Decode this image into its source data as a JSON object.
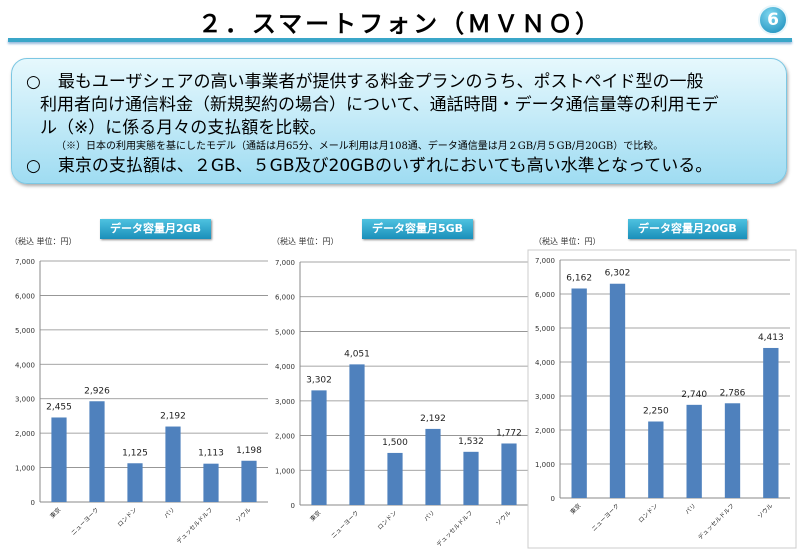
{
  "header": {
    "title": "２．スマートフォン（ＭＶＮＯ）",
    "page_badge": "6"
  },
  "summary": {
    "bullet1_lines": [
      "○　最もユーザシェアの高い事業者が提供する料金プランのうち、ポストペイド型の一般",
      "利用者向け通信料金（新規契約の場合）について、通話時間・データ通信量等の利用モデ",
      "ル（※）に係る月々の支払額を比較。"
    ],
    "note": "（※）日本の利用実態を基にしたモデル（通話は月65分、メール利用は月108通、データ通信量は月２GB/月５GB/月20GB）で比較。",
    "bullet2": "○　東京の支払額は、２GB、５GB及び20GBのいずれにおいても高い水準となっている。"
  },
  "colors": {
    "bar": "#4f81bd",
    "accent": "#1a8fba"
  },
  "chart_data": [
    {
      "type": "bar",
      "title": "データ容量月2GB",
      "unit_label": "（税込  単位：円）",
      "categories": [
        "東京",
        "ニューヨーク",
        "ロンドン",
        "パリ",
        "デュッセルドルフ",
        "ソウル"
      ],
      "values": [
        2455,
        2926,
        1125,
        2192,
        1113,
        1198
      ],
      "labels": [
        "2,455",
        "2,926",
        "1,125",
        "2,192",
        "1,113",
        "1,198"
      ],
      "ylim": [
        0,
        7000
      ],
      "yticks": [
        "0",
        "1,000",
        "2,000",
        "3,000",
        "4,000",
        "5,000",
        "6,000",
        "7,000"
      ],
      "grid": true
    },
    {
      "type": "bar",
      "title": "データ容量月5GB",
      "unit_label": "（税込  単位：円）",
      "categories": [
        "東京",
        "ニューヨーク",
        "ロンドン",
        "パリ",
        "デュッセルドルフ",
        "ソウル"
      ],
      "values": [
        3302,
        4051,
        1500,
        2192,
        1532,
        1772
      ],
      "labels": [
        "3,302",
        "4,051",
        "1,500",
        "2,192",
        "1,532",
        "1,772"
      ],
      "ylim": [
        0,
        7000
      ],
      "yticks": [
        "0",
        "1,000",
        "2,000",
        "3,000",
        "4,000",
        "5,000",
        "6,000",
        "7,000"
      ],
      "grid": true
    },
    {
      "type": "bar",
      "title": "データ容量月20GB",
      "unit_label": "（税込  単位：円）",
      "categories": [
        "東京",
        "ニューヨーク",
        "ロンドン",
        "パリ",
        "デュッセルドルフ",
        "ソウル"
      ],
      "values": [
        6162,
        6302,
        2250,
        2740,
        2786,
        4413
      ],
      "labels": [
        "6,162",
        "6,302",
        "2,250",
        "2,740",
        "2,786",
        "4,413"
      ],
      "ylim": [
        0,
        7000
      ],
      "yticks": [
        "0",
        "1,000",
        "2,000",
        "3,000",
        "4,000",
        "5,000",
        "6,000",
        "7,000"
      ],
      "grid": true
    }
  ]
}
